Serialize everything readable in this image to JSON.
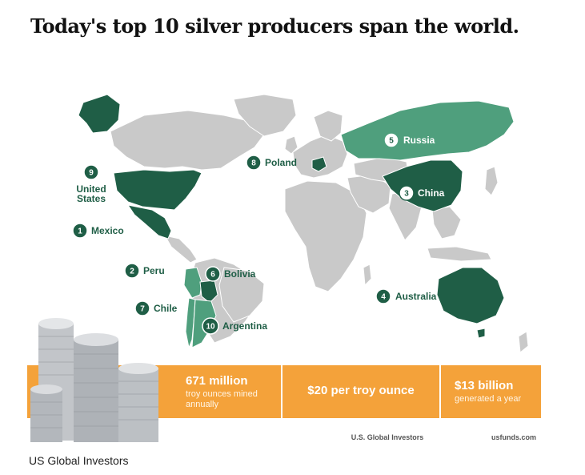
{
  "headline": "Today's top 10 silver producers span the world.",
  "caption": "US Global Investors",
  "colors": {
    "land": "#c9c9c9",
    "border": "#ffffff",
    "producer_light": "#4f9f7d",
    "producer_dark": "#1f5e46",
    "orange": "#f4a23a",
    "coins": "#b9bcc0"
  },
  "producers": [
    {
      "rank": "1",
      "name": "Mexico"
    },
    {
      "rank": "2",
      "name": "Peru"
    },
    {
      "rank": "3",
      "name": "China"
    },
    {
      "rank": "4",
      "name": "Australia"
    },
    {
      "rank": "5",
      "name": "Russia"
    },
    {
      "rank": "6",
      "name": "Bolivia"
    },
    {
      "rank": "7",
      "name": "Chile"
    },
    {
      "rank": "8",
      "name": "Poland"
    },
    {
      "rank": "9",
      "name_line1": "United",
      "name_line2": "States"
    },
    {
      "rank": "10",
      "name": "Argentina"
    }
  ],
  "stats": [
    {
      "big": "671 million",
      "line1": "troy ounces mined",
      "line2": "annually"
    },
    {
      "big": "$20 per troy ounce"
    },
    {
      "big": "$13 billion",
      "line1": "generated a year"
    }
  ],
  "credits": [
    "U.S. Global Investors",
    "usfunds.com"
  ],
  "icons": [
    "silver-coin-stack-icon"
  ]
}
